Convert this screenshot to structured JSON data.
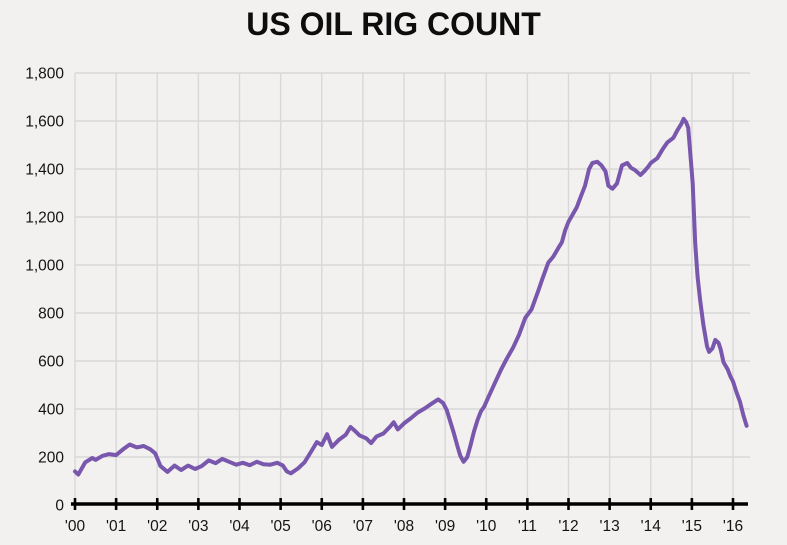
{
  "chart_data": {
    "type": "line",
    "title": "US OIL RIG COUNT",
    "xlabel": "",
    "ylabel": "",
    "grid": true,
    "legend": "none",
    "colors": {
      "background": "#f2f1ef",
      "gridline": "#d8d8d8",
      "axis": "#000000",
      "text": "#141414",
      "line": "#7857ad"
    },
    "y_axis": {
      "min": 0,
      "max": 1800,
      "ticks": [
        {
          "v": 0,
          "label": "0"
        },
        {
          "v": 200,
          "label": "200"
        },
        {
          "v": 400,
          "label": "400"
        },
        {
          "v": 600,
          "label": "600"
        },
        {
          "v": 800,
          "label": "800"
        },
        {
          "v": 1000,
          "label": "1,000"
        },
        {
          "v": 1200,
          "label": "1,200"
        },
        {
          "v": 1400,
          "label": "1,400"
        },
        {
          "v": 1600,
          "label": "1,600"
        },
        {
          "v": 1800,
          "label": "1,800"
        }
      ]
    },
    "x_axis": {
      "min": 2000,
      "max": 2016.42,
      "ticks": [
        {
          "t": 2000,
          "label": "'00"
        },
        {
          "t": 2001,
          "label": "'01"
        },
        {
          "t": 2002,
          "label": "'02"
        },
        {
          "t": 2003,
          "label": "'03"
        },
        {
          "t": 2004,
          "label": "'04"
        },
        {
          "t": 2005,
          "label": "'05"
        },
        {
          "t": 2006,
          "label": "'06"
        },
        {
          "t": 2007,
          "label": "'07"
        },
        {
          "t": 2008,
          "label": "'08"
        },
        {
          "t": 2009,
          "label": "'09"
        },
        {
          "t": 2010,
          "label": "'10"
        },
        {
          "t": 2011,
          "label": "'11"
        },
        {
          "t": 2012,
          "label": "'12"
        },
        {
          "t": 2013,
          "label": "'13"
        },
        {
          "t": 2014,
          "label": "'14"
        },
        {
          "t": 2015,
          "label": "'15"
        },
        {
          "t": 2016,
          "label": "'16"
        }
      ]
    },
    "series": [
      {
        "name": "US oil rig count",
        "color": "#7857ad",
        "points": [
          [
            2000.0,
            140
          ],
          [
            2000.08,
            127
          ],
          [
            2000.25,
            178
          ],
          [
            2000.42,
            196
          ],
          [
            2000.5,
            188
          ],
          [
            2000.67,
            205
          ],
          [
            2000.83,
            212
          ],
          [
            2001.0,
            208
          ],
          [
            2001.17,
            232
          ],
          [
            2001.33,
            252
          ],
          [
            2001.5,
            240
          ],
          [
            2001.67,
            246
          ],
          [
            2001.83,
            232
          ],
          [
            2001.95,
            215
          ],
          [
            2002.08,
            162
          ],
          [
            2002.25,
            138
          ],
          [
            2002.42,
            164
          ],
          [
            2002.58,
            146
          ],
          [
            2002.75,
            164
          ],
          [
            2002.92,
            150
          ],
          [
            2003.08,
            162
          ],
          [
            2003.25,
            186
          ],
          [
            2003.42,
            174
          ],
          [
            2003.58,
            192
          ],
          [
            2003.75,
            180
          ],
          [
            2003.92,
            168
          ],
          [
            2004.08,
            176
          ],
          [
            2004.25,
            166
          ],
          [
            2004.42,
            180
          ],
          [
            2004.58,
            170
          ],
          [
            2004.75,
            168
          ],
          [
            2004.92,
            176
          ],
          [
            2005.05,
            165
          ],
          [
            2005.15,
            140
          ],
          [
            2005.25,
            132
          ],
          [
            2005.42,
            152
          ],
          [
            2005.58,
            178
          ],
          [
            2005.75,
            225
          ],
          [
            2005.88,
            262
          ],
          [
            2006.0,
            250
          ],
          [
            2006.13,
            295
          ],
          [
            2006.25,
            242
          ],
          [
            2006.42,
            272
          ],
          [
            2006.58,
            292
          ],
          [
            2006.7,
            325
          ],
          [
            2006.83,
            305
          ],
          [
            2006.92,
            290
          ],
          [
            2007.08,
            278
          ],
          [
            2007.2,
            258
          ],
          [
            2007.33,
            285
          ],
          [
            2007.5,
            298
          ],
          [
            2007.67,
            328
          ],
          [
            2007.75,
            345
          ],
          [
            2007.85,
            315
          ],
          [
            2008.0,
            340
          ],
          [
            2008.17,
            362
          ],
          [
            2008.33,
            385
          ],
          [
            2008.5,
            402
          ],
          [
            2008.67,
            422
          ],
          [
            2008.83,
            440
          ],
          [
            2008.95,
            425
          ],
          [
            2009.04,
            395
          ],
          [
            2009.12,
            350
          ],
          [
            2009.21,
            300
          ],
          [
            2009.29,
            250
          ],
          [
            2009.37,
            205
          ],
          [
            2009.45,
            180
          ],
          [
            2009.54,
            200
          ],
          [
            2009.62,
            250
          ],
          [
            2009.7,
            305
          ],
          [
            2009.79,
            355
          ],
          [
            2009.87,
            390
          ],
          [
            2009.95,
            410
          ],
          [
            2010.04,
            445
          ],
          [
            2010.2,
            505
          ],
          [
            2010.35,
            560
          ],
          [
            2010.5,
            610
          ],
          [
            2010.65,
            655
          ],
          [
            2010.8,
            710
          ],
          [
            2010.95,
            780
          ],
          [
            2011.1,
            815
          ],
          [
            2011.27,
            895
          ],
          [
            2011.36,
            940
          ],
          [
            2011.51,
            1010
          ],
          [
            2011.63,
            1035
          ],
          [
            2011.75,
            1070
          ],
          [
            2011.84,
            1095
          ],
          [
            2011.92,
            1145
          ],
          [
            2012.0,
            1180
          ],
          [
            2012.1,
            1210
          ],
          [
            2012.2,
            1240
          ],
          [
            2012.3,
            1285
          ],
          [
            2012.4,
            1330
          ],
          [
            2012.5,
            1400
          ],
          [
            2012.58,
            1425
          ],
          [
            2012.7,
            1430
          ],
          [
            2012.8,
            1415
          ],
          [
            2012.9,
            1390
          ],
          [
            2012.97,
            1330
          ],
          [
            2013.07,
            1318
          ],
          [
            2013.18,
            1340
          ],
          [
            2013.3,
            1415
          ],
          [
            2013.43,
            1425
          ],
          [
            2013.52,
            1405
          ],
          [
            2013.62,
            1395
          ],
          [
            2013.75,
            1375
          ],
          [
            2013.85,
            1392
          ],
          [
            2013.93,
            1408
          ],
          [
            2014.0,
            1425
          ],
          [
            2014.16,
            1445
          ],
          [
            2014.28,
            1480
          ],
          [
            2014.4,
            1510
          ],
          [
            2014.55,
            1530
          ],
          [
            2014.65,
            1562
          ],
          [
            2014.75,
            1590
          ],
          [
            2014.8,
            1609
          ],
          [
            2014.86,
            1595
          ],
          [
            2014.91,
            1572
          ],
          [
            2014.96,
            1470
          ],
          [
            2015.02,
            1340
          ],
          [
            2015.08,
            1090
          ],
          [
            2015.14,
            950
          ],
          [
            2015.2,
            855
          ],
          [
            2015.28,
            750
          ],
          [
            2015.37,
            660
          ],
          [
            2015.42,
            638
          ],
          [
            2015.5,
            652
          ],
          [
            2015.57,
            688
          ],
          [
            2015.65,
            675
          ],
          [
            2015.7,
            648
          ],
          [
            2015.77,
            595
          ],
          [
            2015.87,
            565
          ],
          [
            2015.94,
            535
          ],
          [
            2016.0,
            515
          ],
          [
            2016.08,
            472
          ],
          [
            2016.17,
            430
          ],
          [
            2016.25,
            375
          ],
          [
            2016.33,
            330
          ]
        ]
      }
    ]
  }
}
